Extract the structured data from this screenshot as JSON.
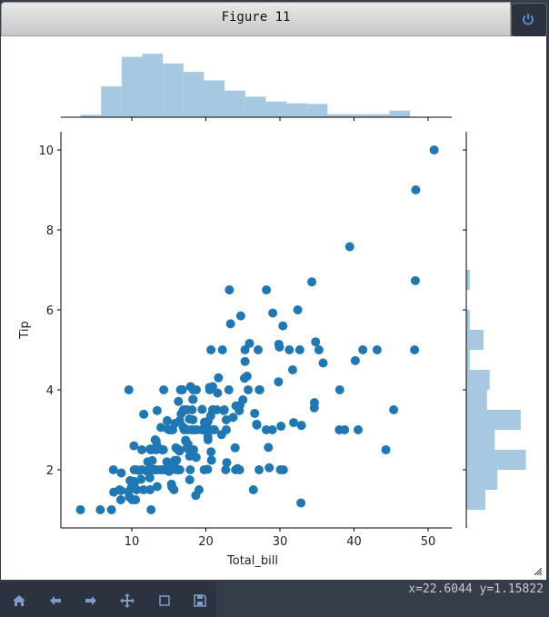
{
  "window": {
    "title": "Figure 11"
  },
  "toolbar": {
    "buttons": [
      "home",
      "back",
      "forward",
      "pan",
      "zoom",
      "save"
    ],
    "coords": "x=22.6044 y=1.15822"
  },
  "colors": {
    "point": "#1f77b4",
    "hist": "#a6c8e0",
    "titlebar": "#d8d8d8",
    "chrome": "#353c4a"
  },
  "chart_data": {
    "type": "scatter",
    "title": "",
    "xlabel": "Total_bill",
    "ylabel": "Tip",
    "xlim": [
      0.5,
      53.5
    ],
    "ylim": [
      0.5,
      10.5
    ],
    "xticks": [
      10,
      20,
      30,
      40,
      50
    ],
    "yticks": [
      2,
      4,
      6,
      8,
      10
    ],
    "marginal_x_hist": {
      "bin_edges": [
        3.07,
        5.85,
        8.63,
        11.41,
        14.19,
        16.97,
        19.75,
        22.53,
        25.31,
        28.09,
        30.87,
        33.65,
        36.43,
        39.21,
        41.99,
        44.77,
        47.55,
        50.81
      ],
      "relative_heights": [
        0.04,
        0.51,
        1.0,
        1.05,
        0.89,
        0.75,
        0.61,
        0.44,
        0.34,
        0.26,
        0.23,
        0.22,
        0.05,
        0.05,
        0.05,
        0.11
      ]
    },
    "marginal_y_hist": {
      "bin_edges": [
        1.0,
        1.5,
        2.0,
        2.5,
        3.0,
        3.5,
        4.0,
        4.5,
        5.0,
        5.5,
        6.0,
        6.5,
        7.0
      ],
      "relative_widths": [
        0.22,
        0.36,
        0.69,
        0.33,
        0.63,
        0.24,
        0.27,
        0.04,
        0.2,
        0.04,
        0.0,
        0.04
      ]
    },
    "points": [
      [
        3.07,
        1.0
      ],
      [
        5.75,
        1.0
      ],
      [
        7.25,
        1.0
      ],
      [
        7.51,
        2.0
      ],
      [
        7.56,
        1.44
      ],
      [
        8.35,
        1.5
      ],
      [
        8.51,
        1.25
      ],
      [
        8.52,
        1.48
      ],
      [
        8.58,
        1.92
      ],
      [
        9.55,
        1.45
      ],
      [
        9.6,
        4.0
      ],
      [
        9.68,
        1.32
      ],
      [
        9.78,
        1.73
      ],
      [
        9.94,
        1.56
      ],
      [
        10.07,
        1.25
      ],
      [
        10.27,
        1.71
      ],
      [
        10.29,
        2.6
      ],
      [
        10.33,
        2.0
      ],
      [
        10.34,
        1.66
      ],
      [
        10.51,
        1.25
      ],
      [
        10.63,
        2.0
      ],
      [
        10.65,
        1.5
      ],
      [
        11.02,
        1.98
      ],
      [
        11.24,
        1.76
      ],
      [
        11.35,
        2.5
      ],
      [
        11.38,
        2.0
      ],
      [
        11.59,
        1.5
      ],
      [
        11.61,
        3.39
      ],
      [
        12.02,
        1.97
      ],
      [
        12.16,
        2.2
      ],
      [
        12.26,
        2.0
      ],
      [
        12.43,
        1.8
      ],
      [
        12.46,
        1.5
      ],
      [
        12.48,
        2.52
      ],
      [
        12.54,
        2.5
      ],
      [
        12.6,
        1.0
      ],
      [
        12.66,
        2.5
      ],
      [
        12.69,
        2.0
      ],
      [
        12.74,
        2.01
      ],
      [
        12.76,
        2.23
      ],
      [
        13.0,
        2.0
      ],
      [
        13.03,
        2.0
      ],
      [
        13.13,
        2.0
      ],
      [
        13.16,
        2.75
      ],
      [
        13.27,
        2.5
      ],
      [
        13.28,
        2.72
      ],
      [
        13.37,
        2.0
      ],
      [
        13.39,
        2.61
      ],
      [
        13.42,
        1.58
      ],
      [
        13.42,
        3.48
      ],
      [
        13.81,
        2.0
      ],
      [
        13.94,
        3.06
      ],
      [
        14.07,
        2.5
      ],
      [
        14.15,
        2.0
      ],
      [
        14.26,
        2.5
      ],
      [
        14.31,
        4.0
      ],
      [
        14.48,
        2.0
      ],
      [
        14.52,
        2.0
      ],
      [
        14.73,
        2.2
      ],
      [
        14.78,
        3.23
      ],
      [
        14.83,
        3.02
      ],
      [
        15.01,
        2.09
      ],
      [
        15.04,
        1.96
      ],
      [
        15.06,
        3.0
      ],
      [
        15.36,
        1.64
      ],
      [
        15.38,
        3.0
      ],
      [
        15.42,
        1.57
      ],
      [
        15.48,
        2.02
      ],
      [
        15.53,
        3.0
      ],
      [
        15.69,
        1.5
      ],
      [
        15.77,
        2.23
      ],
      [
        15.81,
        3.16
      ],
      [
        15.95,
        2.55
      ],
      [
        15.98,
        2.03
      ],
      [
        16.0,
        2.0
      ],
      [
        16.04,
        2.24
      ],
      [
        16.27,
        2.5
      ],
      [
        16.29,
        3.71
      ],
      [
        16.31,
        2.0
      ],
      [
        16.4,
        2.5
      ],
      [
        16.45,
        2.47
      ],
      [
        16.47,
        3.23
      ],
      [
        16.49,
        2.0
      ],
      [
        16.58,
        4.0
      ],
      [
        16.66,
        3.4
      ],
      [
        16.82,
        4.0
      ],
      [
        16.93,
        3.07
      ],
      [
        16.97,
        3.5
      ],
      [
        17.07,
        3.0
      ],
      [
        17.26,
        2.74
      ],
      [
        17.29,
        2.71
      ],
      [
        17.31,
        3.5
      ],
      [
        17.46,
        2.54
      ],
      [
        17.47,
        3.5
      ],
      [
        17.51,
        3.0
      ],
      [
        17.59,
        2.64
      ],
      [
        17.78,
        3.27
      ],
      [
        17.81,
        2.34
      ],
      [
        17.82,
        1.75
      ],
      [
        17.89,
        2.0
      ],
      [
        17.92,
        4.08
      ],
      [
        18.04,
        3.0
      ],
      [
        18.15,
        3.5
      ],
      [
        18.24,
        3.76
      ],
      [
        18.26,
        3.25
      ],
      [
        18.28,
        4.0
      ],
      [
        18.29,
        3.76
      ],
      [
        18.35,
        2.5
      ],
      [
        18.43,
        3.0
      ],
      [
        18.64,
        1.36
      ],
      [
        18.69,
        2.31
      ],
      [
        18.71,
        4.0
      ],
      [
        18.78,
        3.0
      ],
      [
        19.08,
        1.5
      ],
      [
        19.44,
        3.0
      ],
      [
        19.49,
        3.51
      ],
      [
        19.65,
        3.0
      ],
      [
        19.77,
        2.0
      ],
      [
        19.81,
        3.19
      ],
      [
        19.82,
        3.18
      ],
      [
        20.08,
        3.15
      ],
      [
        20.23,
        2.01
      ],
      [
        20.27,
        2.83
      ],
      [
        20.29,
        2.75
      ],
      [
        20.29,
        3.21
      ],
      [
        20.45,
        3.0
      ],
      [
        20.49,
        4.06
      ],
      [
        20.53,
        4.0
      ],
      [
        20.65,
        3.35
      ],
      [
        20.69,
        2.45
      ],
      [
        20.69,
        5.0
      ],
      [
        20.76,
        2.24
      ],
      [
        20.9,
        3.5
      ],
      [
        20.92,
        4.08
      ],
      [
        21.01,
        3.0
      ],
      [
        21.01,
        3.5
      ],
      [
        21.16,
        3.0
      ],
      [
        21.5,
        3.5
      ],
      [
        21.58,
        3.92
      ],
      [
        21.7,
        4.3
      ],
      [
        22.12,
        2.88
      ],
      [
        22.23,
        5.0
      ],
      [
        22.42,
        3.48
      ],
      [
        22.49,
        3.5
      ],
      [
        22.67,
        2.0
      ],
      [
        22.75,
        3.25
      ],
      [
        22.76,
        3.0
      ],
      [
        22.82,
        2.18
      ],
      [
        23.1,
        4.0
      ],
      [
        23.17,
        6.5
      ],
      [
        23.33,
        5.65
      ],
      [
        23.68,
        3.31
      ],
      [
        23.95,
        2.55
      ],
      [
        24.01,
        2.0
      ],
      [
        24.06,
        3.6
      ],
      [
        24.27,
        2.03
      ],
      [
        24.52,
        3.48
      ],
      [
        24.55,
        2.0
      ],
      [
        24.59,
        3.61
      ],
      [
        24.71,
        5.85
      ],
      [
        25.0,
        3.75
      ],
      [
        25.21,
        4.29
      ],
      [
        25.28,
        5.0
      ],
      [
        25.29,
        4.71
      ],
      [
        25.56,
        4.34
      ],
      [
        25.71,
        4.0
      ],
      [
        25.89,
        5.16
      ],
      [
        26.41,
        1.5
      ],
      [
        26.59,
        3.41
      ],
      [
        26.86,
        3.14
      ],
      [
        26.88,
        3.12
      ],
      [
        27.05,
        5.0
      ],
      [
        27.18,
        2.0
      ],
      [
        27.2,
        4.0
      ],
      [
        27.28,
        4.0
      ],
      [
        28.15,
        3.0
      ],
      [
        28.17,
        6.5
      ],
      [
        28.44,
        2.56
      ],
      [
        28.55,
        2.05
      ],
      [
        28.97,
        3.0
      ],
      [
        29.03,
        5.92
      ],
      [
        29.8,
        4.2
      ],
      [
        29.85,
        5.14
      ],
      [
        29.93,
        5.07
      ],
      [
        30.06,
        2.0
      ],
      [
        30.14,
        3.09
      ],
      [
        30.4,
        5.6
      ],
      [
        30.46,
        2.0
      ],
      [
        31.27,
        5.0
      ],
      [
        31.71,
        4.5
      ],
      [
        31.85,
        3.18
      ],
      [
        32.4,
        6.0
      ],
      [
        32.68,
        5.0
      ],
      [
        32.83,
        1.17
      ],
      [
        32.9,
        3.11
      ],
      [
        34.3,
        6.7
      ],
      [
        34.63,
        3.55
      ],
      [
        34.65,
        3.68
      ],
      [
        34.81,
        5.2
      ],
      [
        35.26,
        5.0
      ],
      [
        35.83,
        4.67
      ],
      [
        38.01,
        3.0
      ],
      [
        38.07,
        4.0
      ],
      [
        38.73,
        3.0
      ],
      [
        39.42,
        7.58
      ],
      [
        40.17,
        4.73
      ],
      [
        40.55,
        3.0
      ],
      [
        41.19,
        5.0
      ],
      [
        43.11,
        5.0
      ],
      [
        44.3,
        2.5
      ],
      [
        45.35,
        3.5
      ],
      [
        48.17,
        5.0
      ],
      [
        48.27,
        6.73
      ],
      [
        48.33,
        9.0
      ],
      [
        50.81,
        10.0
      ]
    ]
  }
}
